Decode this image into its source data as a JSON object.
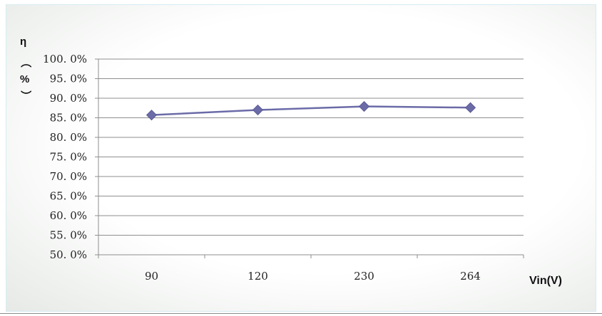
{
  "chart_data": {
    "type": "line",
    "categories": [
      "90",
      "120",
      "230",
      "264"
    ],
    "series": [
      {
        "values": [
          85.7,
          87.0,
          87.9,
          87.6
        ]
      }
    ],
    "y_tick_labels": [
      "50. 0%",
      "55. 0%",
      "60. 0%",
      "65. 0%",
      "70. 0%",
      "75. 0%",
      "80. 0%",
      "85. 0%",
      "90. 0%",
      "95. 0%",
      "100. 0%"
    ],
    "ylim": [
      50,
      100
    ],
    "ystep": 5,
    "ylabel_lines": [
      "η",
      "（",
      "%",
      "）"
    ],
    "xlabel": "Vin(V)",
    "grid": true,
    "line_color": "#6b6ba8",
    "marker_color": "#6b6ba8",
    "marker": "diamond"
  }
}
